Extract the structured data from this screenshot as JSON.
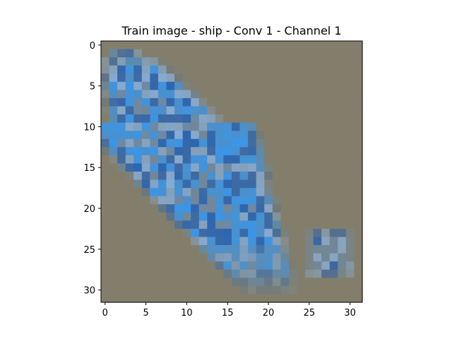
{
  "chart_data": {
    "type": "heatmap",
    "title": "Train image - ship - Conv 1 - Channel 1",
    "xlabel": "",
    "ylabel": "",
    "xlim": [
      -0.5,
      31.5
    ],
    "ylim": [
      31.5,
      -0.5
    ],
    "grid": false,
    "rows": 32,
    "cols": 32,
    "x_ticks": [
      0,
      5,
      10,
      15,
      20,
      25,
      30
    ],
    "y_ticks": [
      0,
      5,
      10,
      15,
      20,
      25,
      30
    ],
    "colors": {
      "background": "#837e6b",
      "dark_blue": "#1d5fb6",
      "bright_blue": "#2f98f8",
      "light_blue": "#8ab3e0",
      "grey_blue": "#6c8aa6"
    },
    "regions": [
      {
        "name": "ship-hull",
        "shape": "diagonal band",
        "rows": [
          1,
          29
        ],
        "cols": [
          1,
          21
        ]
      },
      {
        "name": "small-blob",
        "shape": "square",
        "rows": [
          23,
          28
        ],
        "cols": [
          25,
          30
        ]
      }
    ]
  }
}
